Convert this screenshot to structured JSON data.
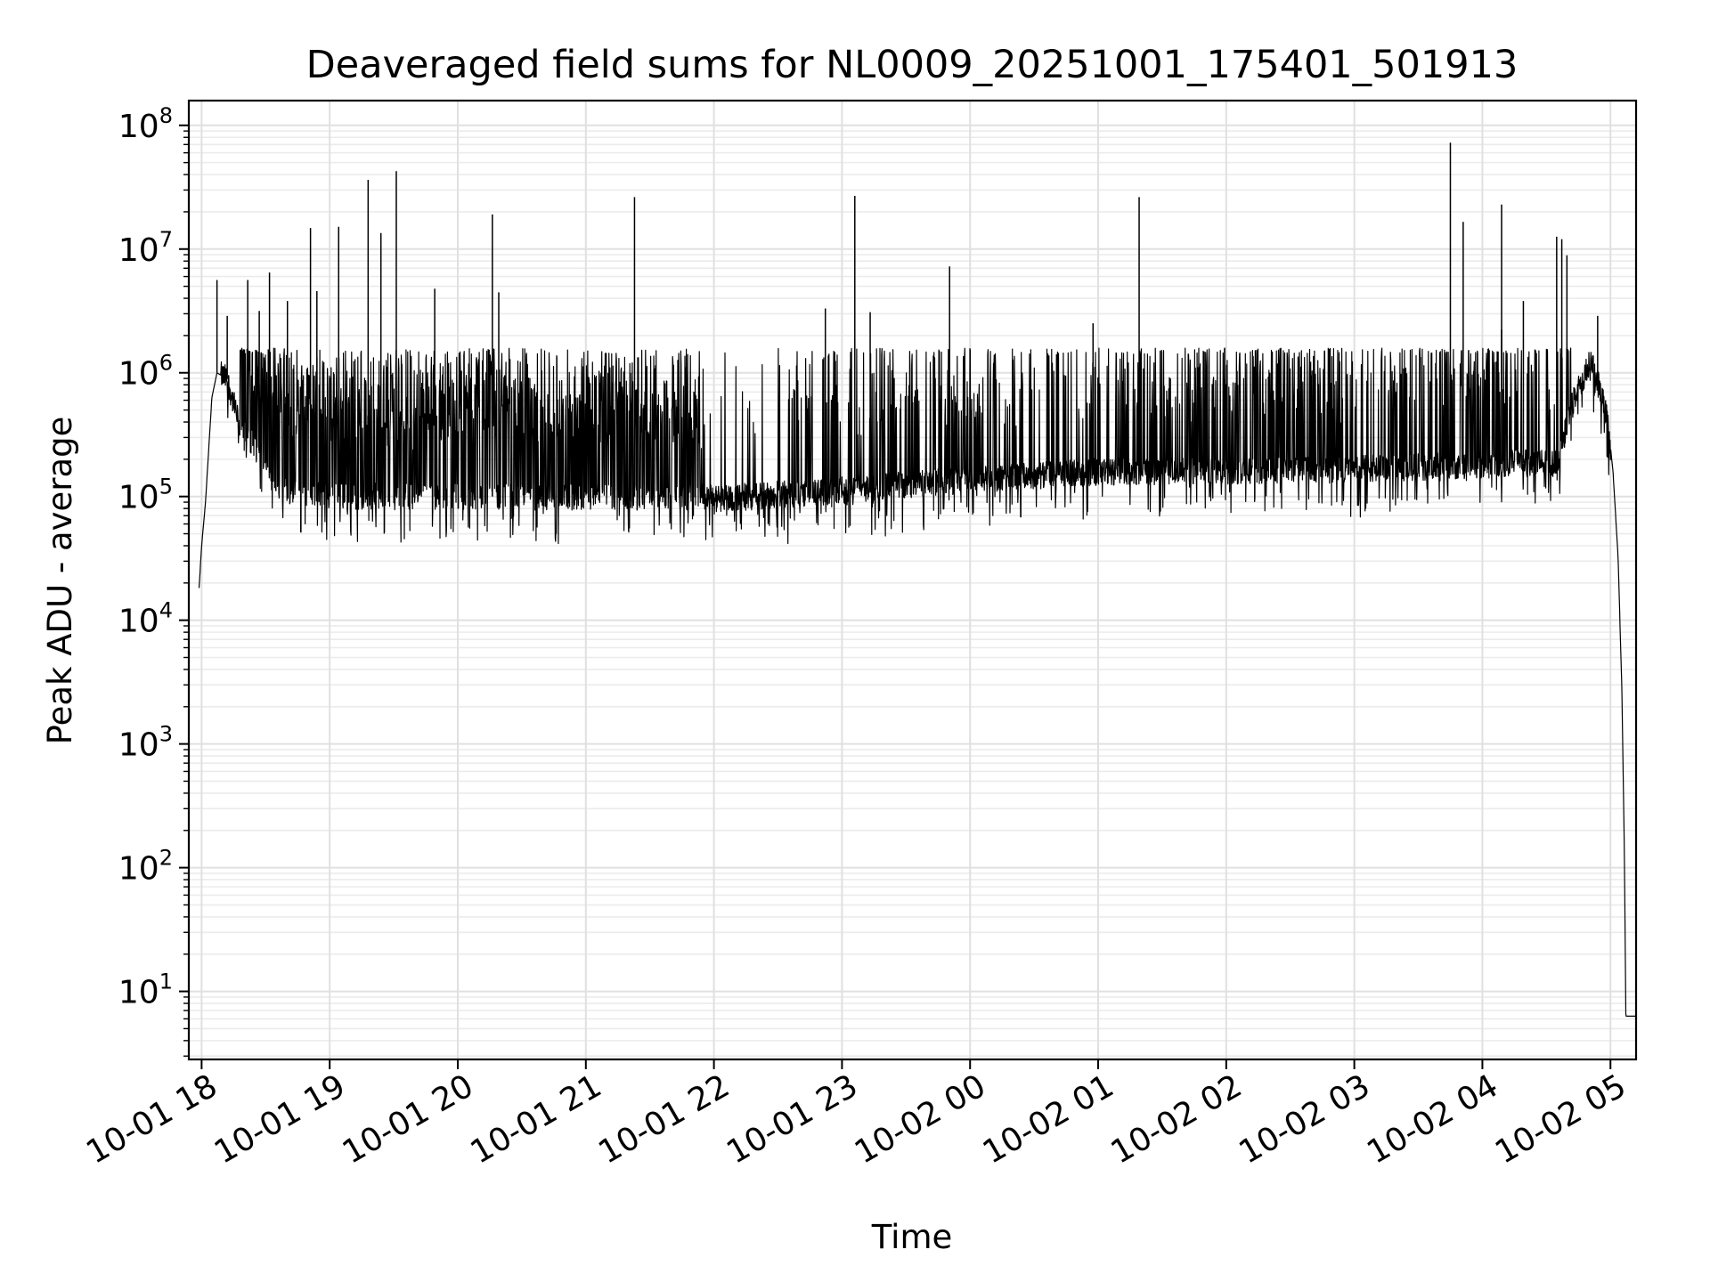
{
  "chart_data": {
    "type": "line",
    "title": "Deaveraged field sums for NL0009_20251001_175401_501913",
    "xlabel": "Time",
    "ylabel": "Peak ADU - average",
    "yscale": "log",
    "ylim_log10": [
      0.45,
      8.2
    ],
    "xlim_hours": [
      17.9,
      29.2
    ],
    "grid": true,
    "line_color": "#000000",
    "x_ticks": [
      {
        "hour": 18,
        "label": "10-01 18"
      },
      {
        "hour": 19,
        "label": "10-01 19"
      },
      {
        "hour": 20,
        "label": "10-01 20"
      },
      {
        "hour": 21,
        "label": "10-01 21"
      },
      {
        "hour": 22,
        "label": "10-01 22"
      },
      {
        "hour": 23,
        "label": "10-01 23"
      },
      {
        "hour": 24,
        "label": "10-02 00"
      },
      {
        "hour": 25,
        "label": "10-02 01"
      },
      {
        "hour": 26,
        "label": "10-02 02"
      },
      {
        "hour": 27,
        "label": "10-02 03"
      },
      {
        "hour": 28,
        "label": "10-02 04"
      },
      {
        "hour": 29,
        "label": "10-02 05"
      }
    ],
    "y_ticks": [
      {
        "exp": 1,
        "base": "10",
        "sup": "1"
      },
      {
        "exp": 2,
        "base": "10",
        "sup": "2"
      },
      {
        "exp": 3,
        "base": "10",
        "sup": "3"
      },
      {
        "exp": 4,
        "base": "10",
        "sup": "4"
      },
      {
        "exp": 5,
        "base": "10",
        "sup": "5"
      },
      {
        "exp": 6,
        "base": "10",
        "sup": "6"
      },
      {
        "exp": 7,
        "base": "10",
        "sup": "7"
      },
      {
        "exp": 8,
        "base": "10",
        "sup": "8"
      }
    ],
    "series": [
      {
        "name": "Peak ADU - average",
        "profile": [
          {
            "hour": 17.98,
            "log10": 4.26
          },
          {
            "hour": 18.0,
            "log10": 4.6
          },
          {
            "hour": 18.03,
            "log10": 4.95
          },
          {
            "hour": 18.08,
            "log10": 5.8
          },
          {
            "hour": 18.12,
            "log10": 6.0
          },
          {
            "hour": 18.2,
            "log10": 5.95
          },
          {
            "hour": 18.3,
            "log10": 5.55
          },
          {
            "hour": 18.45,
            "log10": 5.35
          },
          {
            "hour": 18.6,
            "log10": 5.05
          },
          {
            "hour": 19.0,
            "log10": 5.0
          },
          {
            "hour": 21.9,
            "log10": 5.0
          },
          {
            "hour": 22.0,
            "log10": 4.98
          },
          {
            "hour": 23.0,
            "log10": 5.05
          },
          {
            "hour": 23.8,
            "log10": 5.12
          },
          {
            "hour": 25.0,
            "log10": 5.2
          },
          {
            "hour": 27.0,
            "log10": 5.22
          },
          {
            "hour": 28.6,
            "log10": 5.28
          },
          {
            "hour": 28.68,
            "log10": 5.7
          },
          {
            "hour": 28.85,
            "log10": 6.1
          },
          {
            "hour": 28.92,
            "log10": 5.85
          },
          {
            "hour": 28.98,
            "log10": 5.6
          },
          {
            "hour": 29.02,
            "log10": 5.2
          },
          {
            "hour": 29.06,
            "log10": 4.5
          },
          {
            "hour": 29.09,
            "log10": 3.4
          },
          {
            "hour": 29.11,
            "log10": 2.0
          },
          {
            "hour": 29.12,
            "log10": 0.8
          },
          {
            "hour": 29.2,
            "log10": 0.8
          }
        ],
        "spikes": [
          {
            "hour": 18.12,
            "log10": 6.75
          },
          {
            "hour": 18.2,
            "log10": 6.46
          },
          {
            "hour": 18.36,
            "log10": 6.75
          },
          {
            "hour": 18.45,
            "log10": 6.5
          },
          {
            "hour": 18.53,
            "log10": 6.81
          },
          {
            "hour": 18.67,
            "log10": 6.58
          },
          {
            "hour": 18.85,
            "log10": 7.17
          },
          {
            "hour": 18.9,
            "log10": 6.66
          },
          {
            "hour": 19.07,
            "log10": 7.18
          },
          {
            "hour": 19.3,
            "log10": 7.56
          },
          {
            "hour": 19.4,
            "log10": 7.13
          },
          {
            "hour": 19.52,
            "log10": 7.63
          },
          {
            "hour": 19.82,
            "log10": 6.68
          },
          {
            "hour": 20.27,
            "log10": 7.28
          },
          {
            "hour": 20.32,
            "log10": 6.65
          },
          {
            "hour": 21.38,
            "log10": 7.42
          },
          {
            "hour": 22.87,
            "log10": 6.52
          },
          {
            "hour": 23.1,
            "log10": 7.43
          },
          {
            "hour": 23.22,
            "log10": 6.49
          },
          {
            "hour": 23.84,
            "log10": 6.86
          },
          {
            "hour": 24.96,
            "log10": 6.4
          },
          {
            "hour": 25.32,
            "log10": 7.42
          },
          {
            "hour": 27.75,
            "log10": 7.86
          },
          {
            "hour": 27.85,
            "log10": 7.22
          },
          {
            "hour": 28.15,
            "log10": 6.35
          },
          {
            "hour": 28.15,
            "log10": 7.36
          },
          {
            "hour": 28.32,
            "log10": 6.58
          },
          {
            "hour": 28.58,
            "log10": 7.1
          },
          {
            "hour": 28.62,
            "log10": 7.08
          },
          {
            "hour": 28.66,
            "log10": 6.95
          },
          {
            "hour": 28.9,
            "log10": 6.46
          }
        ]
      }
    ]
  }
}
